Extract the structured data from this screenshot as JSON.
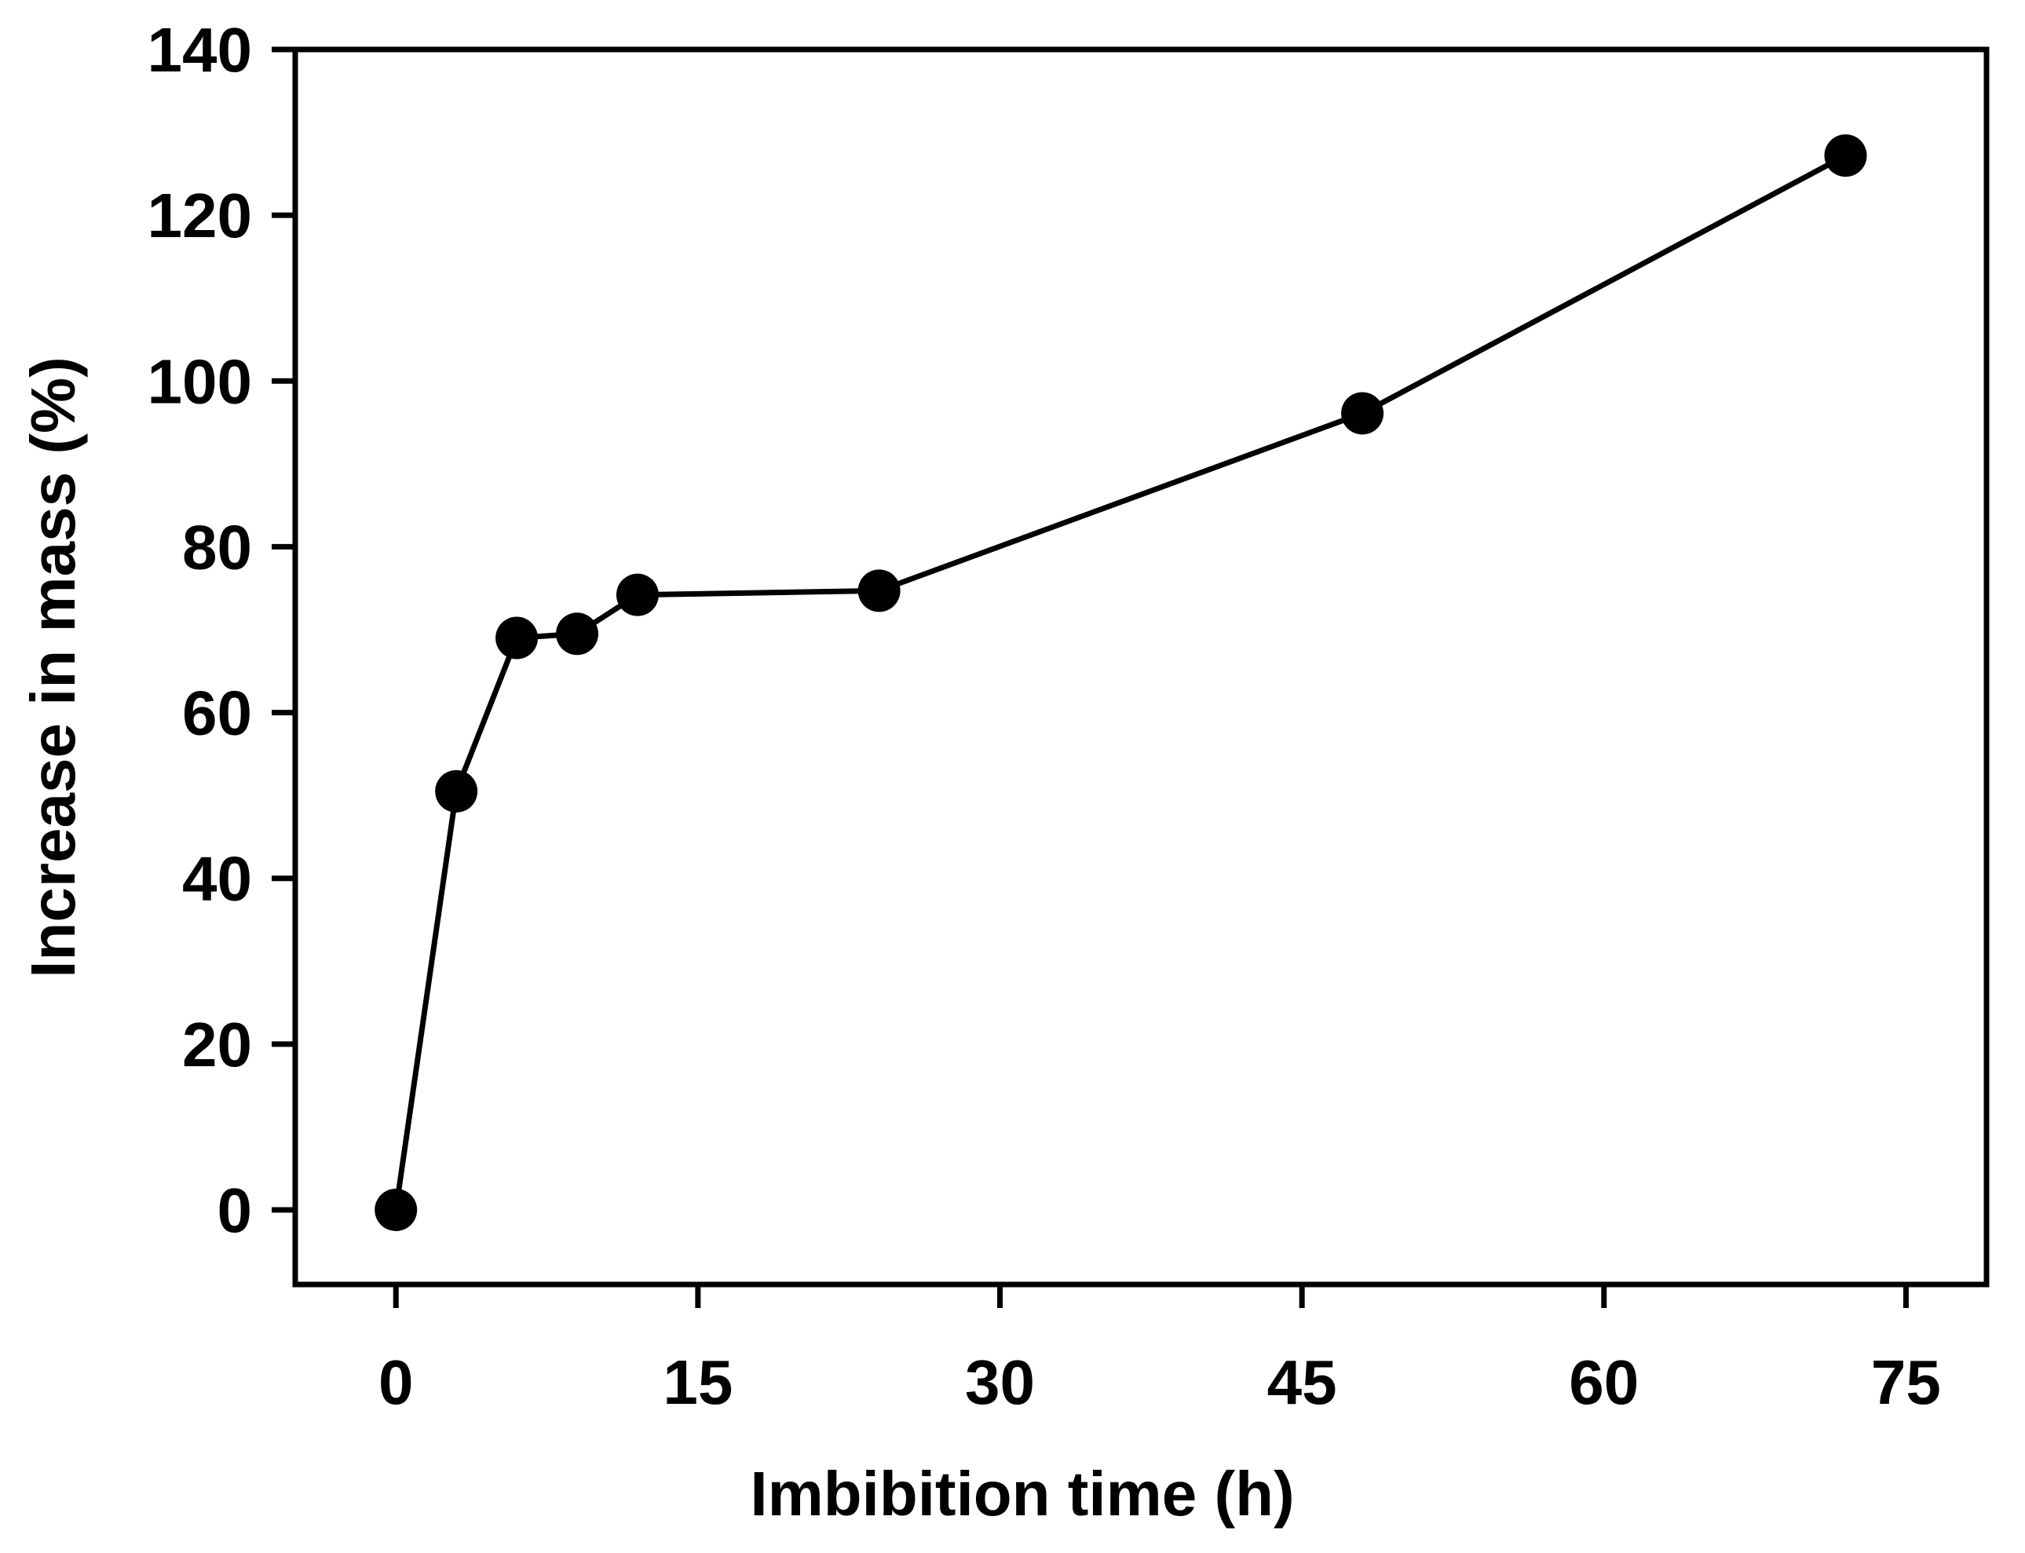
{
  "chart_data": {
    "type": "line",
    "title": "",
    "xlabel": "Imbibition time (h)",
    "ylabel": "Increase in mass (%)",
    "xlim": [
      -5,
      79
    ],
    "ylim": [
      -9,
      140
    ],
    "x_ticks": [
      0,
      15,
      30,
      45,
      60,
      75
    ],
    "y_ticks": [
      0,
      20,
      40,
      60,
      80,
      100,
      120,
      140
    ],
    "x_tick_labels": [
      "0",
      "15",
      "30",
      "45",
      "60",
      "75"
    ],
    "y_tick_labels": [
      "0",
      "20",
      "40",
      "60",
      "80",
      "100",
      "120",
      "140"
    ],
    "grid": false,
    "series": [
      {
        "name": "Increase in mass",
        "color": "#000000",
        "marker": "circle",
        "x": [
          0,
          3,
          6,
          9,
          12,
          24,
          48,
          72
        ],
        "y": [
          0,
          50.5,
          69,
          69.5,
          74.2,
          74.7,
          96.1,
          127.2
        ]
      }
    ]
  }
}
